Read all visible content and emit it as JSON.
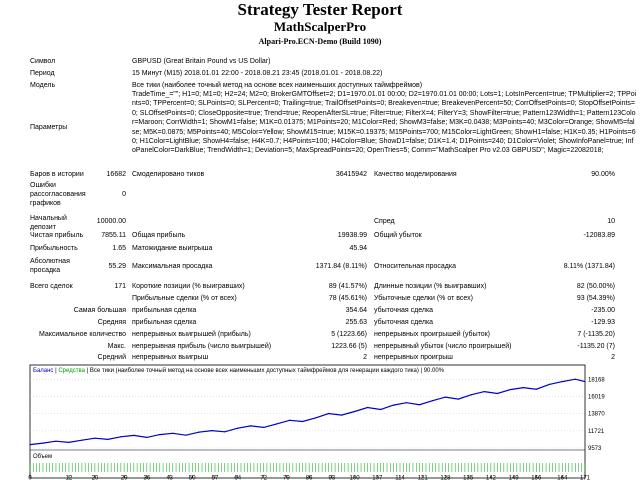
{
  "header": {
    "title": "Strategy Tester Report",
    "expert": "MathScalperPro",
    "server": "Alpari-Pro.ECN-Demo (Build 1090)"
  },
  "info": {
    "symbol_label": "Символ",
    "symbol_value": "GBPUSD (Great Britain Pound vs US Dollar)",
    "period_label": "Период",
    "period_value": "15 Минут (M15) 2018.01.01 22:00 - 2018.08.21 23:45 (2018.01.01 - 2018.08.22)",
    "model_label": "Модель",
    "model_value": "Все тики (наиболее точный метод на основе всех наименьших доступных таймфреймов)",
    "params_label": "Параметры",
    "params_value": "TradeTime_=\"\"; H1=0; M1=0; H2=24; M2=0; BrokerGMTOffset=2; D1=1970.01.01 00:00; D2=1970.01.01 00:00; Lots=1; LotsInPercent=true; TPMultiplier=2; TPPoints=0; TPPercent=0; SLPoints=0; SLPercent=0; Trailing=true; TrailOffsetPoints=0; Breakeven=true; BreakevenPercent=50; CorrOffsetPoints=0; StopOffsetPoints=0; SLOffsetPoints=0; CloseOpposite=true; Trend=true; ReopenAfterSL=true; Filter=true; FilterX=4; FilterY=3; ShowFilter=true; Pattern123Width=1; Pattern123Color=Maroon; CorrWidth=1; ShowM1=false; M1K=0.01375; M1Points=20; M1Color=Red; ShowM3=false; M3K=0.0438; M3Points=40; M3Color=Orange; ShowM5=false; M5K=0.0875; M5Points=40; M5Color=Yellow; ShowM15=true; M15K=0.19375; M15Points=700; M15Color=LightGreen; ShowH1=false; H1K=0.35; H1Points=60; H1Color=LightBlue; ShowH4=false; H4K=0.7; H4Points=100; H4Color=Blue; ShowD1=false; D1K=1.4; D1Points=240; D1Color=Violet; ShowInfoPanel=true; InfoPanelColor=DarkBlue; TrendWidth=1; Deviation=5; MaxSpreadPoints=20; OpenTries=5; Comm=\"MathScalper Pro v2.03 GBPUSD\"; Magic=22082018;"
  },
  "stats": {
    "bars_label": "Баров в истории",
    "bars_value": "16682",
    "ticks_label": "Смоделировано тиков",
    "ticks_value": "36415942",
    "quality_label": "Качество моделирования",
    "quality_value": "90.00%",
    "errors_label": "Ошибки рассогласования графиков",
    "errors_value": "0",
    "deposit_label": "Начальный депозит",
    "deposit_value": "10000.00",
    "spread_label": "Спред",
    "spread_value": "10",
    "netprofit_label": "Чистая прибыль",
    "netprofit_value": "7855.11",
    "grossprofit_label": "Общая прибыль",
    "grossprofit_value": "19938.99",
    "grossloss_label": "Общий убыток",
    "grossloss_value": "-12083.89",
    "pf_label": "Прибыльность",
    "pf_value": "1.65",
    "payoff_label": "Матожидание выигрыша",
    "payoff_value": "45.94",
    "absdd_label": "Абсолютная просадка",
    "absdd_value": "55.29",
    "maxdd_label": "Максимальная просадка",
    "maxdd_value": "1371.84 (8.11%)",
    "reldd_label": "Относительная просадка",
    "reldd_value": "8.11% (1371.84)",
    "trades_label": "Всего сделок",
    "trades_value": "171",
    "short_label": "Короткие позиции (% выигравших)",
    "short_value": "89 (41.57%)",
    "long_label": "Длинные позиции (% выигравших)",
    "long_value": "82 (50.00%)",
    "profit_trades_label": "Прибыльные сделки (% от всех)",
    "profit_trades_value": "78 (45.61%)",
    "loss_trades_label": "Убыточные сделки (% от всех)",
    "loss_trades_value": "93 (54.39%)",
    "largest_label": "Самая большая",
    "avg_label": "Средняя",
    "maxcount_label": "Максимальное количество",
    "maxamt_label": "Макс.",
    "avgcons_label": "Средний",
    "lg_profit_label": "прибыльная сделка",
    "lg_profit_value": "354.64",
    "lg_loss_label": "убыточная сделка",
    "lg_loss_value": "-235.00",
    "av_profit_label": "прибыльная сделка",
    "av_profit_value": "255.63",
    "av_loss_label": "убыточная сделка",
    "av_loss_value": "-129.93",
    "mc_wins_label": "непрерывных выигрышей (прибыль)",
    "mc_wins_value": "5 (1223.66)",
    "mc_losses_label": "непрерывных проигрышей (убыток)",
    "mc_losses_value": "7 (-1135.20)",
    "ma_profit_label": "непрерывная прибыль (число выигрышей)",
    "ma_profit_value": "1223.66 (5)",
    "ma_loss_label": "непрерывный убыток (число проигрышей)",
    "ma_loss_value": "-1135.20 (7)",
    "ac_wins_label": "непрерывных выигрыш",
    "ac_wins_value": "2",
    "ac_losses_label": "непрерывных проигрыш",
    "ac_losses_value": "2"
  },
  "chart_data": {
    "type": "line",
    "legend": [
      {
        "text": "Баланс",
        "color": "#0000c8"
      },
      {
        "text": "Средства",
        "color": "#00a000"
      },
      {
        "text": "Все тики (наиболее точный метод на основе всех наименьших доступных таймфреймов для генерации каждого тика)",
        "color": "#000000"
      },
      {
        "text": "90.00%",
        "color": "#000000"
      }
    ],
    "volume_label": "Объем",
    "ylim": [
      9573,
      18600
    ],
    "y_ticks": [
      "18168",
      "16019",
      "13870",
      "11721",
      "9573"
    ],
    "x_ticks": [
      "0",
      "12",
      "20",
      "29",
      "36",
      "43",
      "50",
      "57",
      "64",
      "72",
      "79",
      "86",
      "93",
      "100",
      "107",
      "114",
      "121",
      "128",
      "135",
      "142",
      "149",
      "156",
      "164",
      "171"
    ],
    "x": [
      0,
      4,
      8,
      12,
      16,
      20,
      24,
      28,
      32,
      36,
      40,
      44,
      48,
      52,
      56,
      60,
      64,
      68,
      72,
      76,
      80,
      84,
      88,
      92,
      96,
      100,
      104,
      108,
      112,
      116,
      120,
      124,
      128,
      132,
      136,
      140,
      144,
      148,
      152,
      156,
      160,
      164,
      168,
      171
    ],
    "balance": [
      10000,
      10190,
      10420,
      10280,
      10550,
      10800,
      10650,
      10980,
      11150,
      10900,
      11250,
      11420,
      11180,
      11550,
      11760,
      11600,
      12050,
      12350,
      12150,
      12600,
      13050,
      12900,
      13350,
      13900,
      13700,
      14150,
      14650,
      14400,
      14950,
      15250,
      15000,
      15500,
      15950,
      15700,
      16250,
      16650,
      16400,
      16900,
      17150,
      16950,
      17550,
      17900,
      18200,
      17900
    ],
    "color": "#0000c8"
  }
}
